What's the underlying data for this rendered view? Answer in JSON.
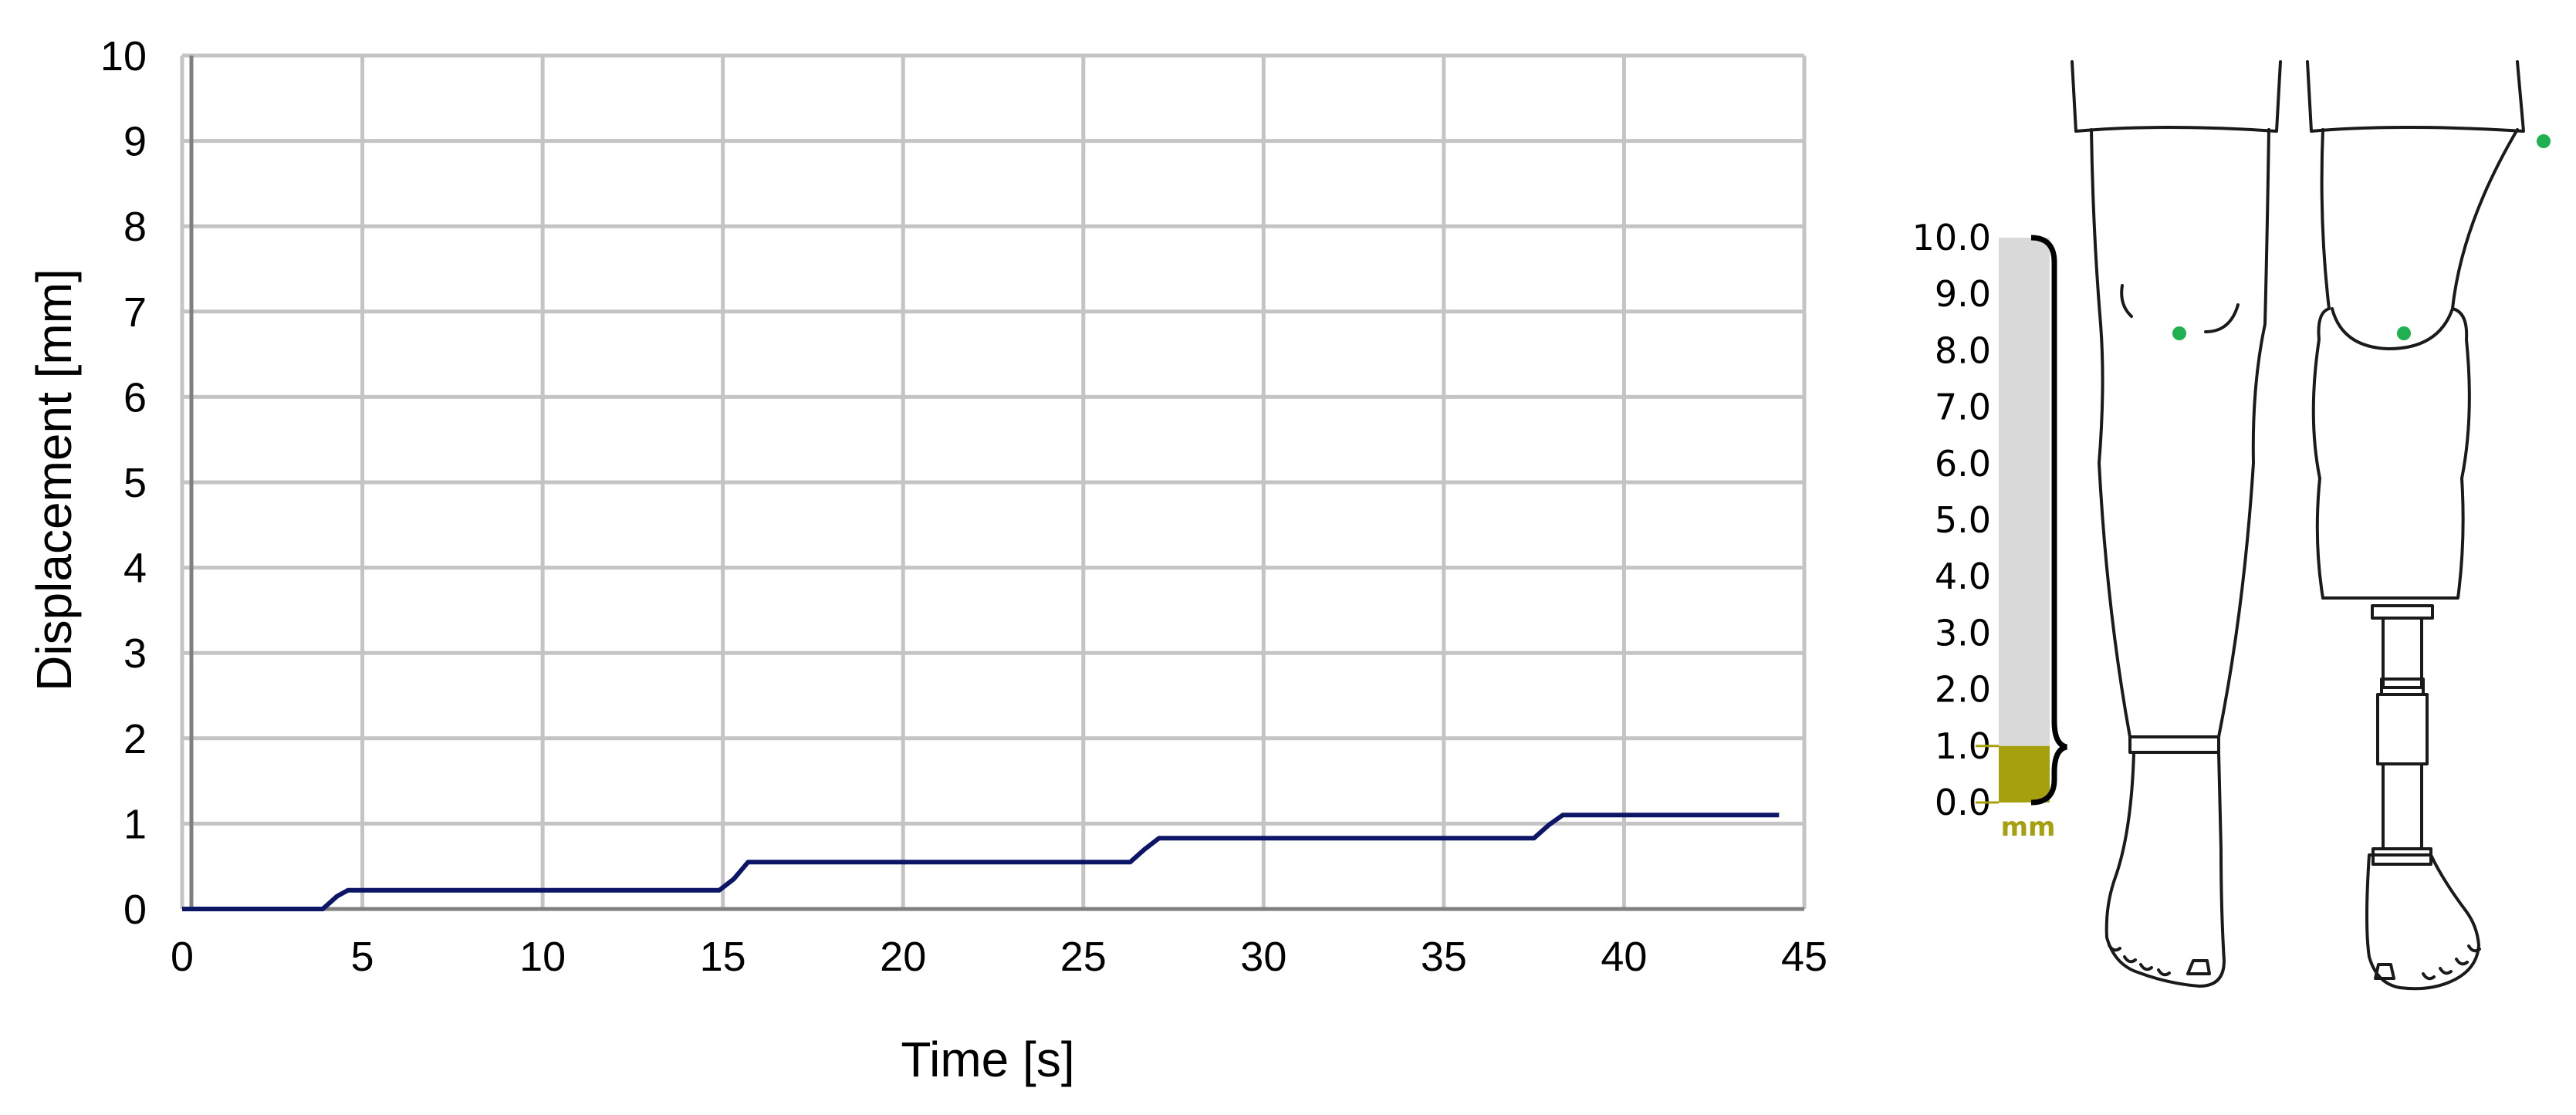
{
  "chart_data": {
    "type": "line",
    "title": "",
    "xlabel": "Time [s]",
    "ylabel": "Displacement [mm]",
    "xlim": [
      0,
      45
    ],
    "ylim": [
      0,
      10
    ],
    "x_ticks": [
      "0",
      "5",
      "10",
      "15",
      "20",
      "25",
      "30",
      "35",
      "40",
      "45"
    ],
    "y_ticks": [
      "0",
      "1",
      "2",
      "3",
      "4",
      "5",
      "6",
      "7",
      "8",
      "9",
      "10"
    ],
    "grid": true,
    "line_color": "#0d1566",
    "series": [
      {
        "x": [
          0,
          3.9,
          4.3,
          4.6,
          14.9,
          15.3,
          15.7,
          26.3,
          26.7,
          27.1,
          37.5,
          37.9,
          38.3,
          44.3
        ],
        "y": [
          0,
          0,
          0.15,
          0.22,
          0.22,
          0.35,
          0.55,
          0.55,
          0.7,
          0.83,
          0.83,
          0.98,
          1.1,
          1.1
        ]
      }
    ]
  },
  "scale": {
    "ticks": [
      "10.0",
      "9.0",
      "8.0",
      "7.0",
      "6.0",
      "5.0",
      "4.0",
      "3.0",
      "2.0",
      "1.0",
      "0.0"
    ],
    "range": [
      0,
      10
    ],
    "fill_value": 1.0,
    "unit": "mm",
    "bar_color": "#d9d9d9",
    "fill_color": "#a6a00f"
  },
  "illustration": {
    "marker_color": "#1fb050",
    "marker_count": 4
  }
}
